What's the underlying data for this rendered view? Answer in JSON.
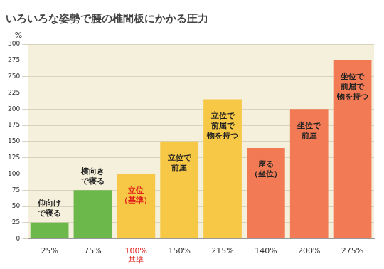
{
  "chart_data": {
    "type": "bar",
    "title": "いろいろな姿勢で腰の椎間板にかかる圧力",
    "categories": [
      "仰向け\nで寝る",
      "横向き\nで寝る",
      "立位\n（基準）",
      "立位で\n前屈",
      "立位で\n前屈で\n物を持つ",
      "座る\n（坐位）",
      "坐位で\n前屈",
      "坐位で\n前屈で\n物を持つ"
    ],
    "values": [
      25,
      75,
      100,
      150,
      215,
      140,
      200,
      275
    ],
    "value_labels": [
      "25%",
      "75%",
      "100%",
      "150%",
      "215%",
      "140%",
      "200%",
      "275%"
    ],
    "colors": [
      "#6cb84a",
      "#6cb84a",
      "#f7c846",
      "#f7c846",
      "#f7c846",
      "#f27a55",
      "#f27a55",
      "#f27a55"
    ],
    "ylabel": "%",
    "ylim": [
      0,
      300
    ],
    "yticks": [
      0,
      25,
      50,
      75,
      100,
      125,
      150,
      175,
      200,
      225,
      250,
      275,
      300
    ],
    "grid": true,
    "annotations": [
      {
        "text": "基準",
        "category": "立位\n（基準）"
      }
    ]
  }
}
